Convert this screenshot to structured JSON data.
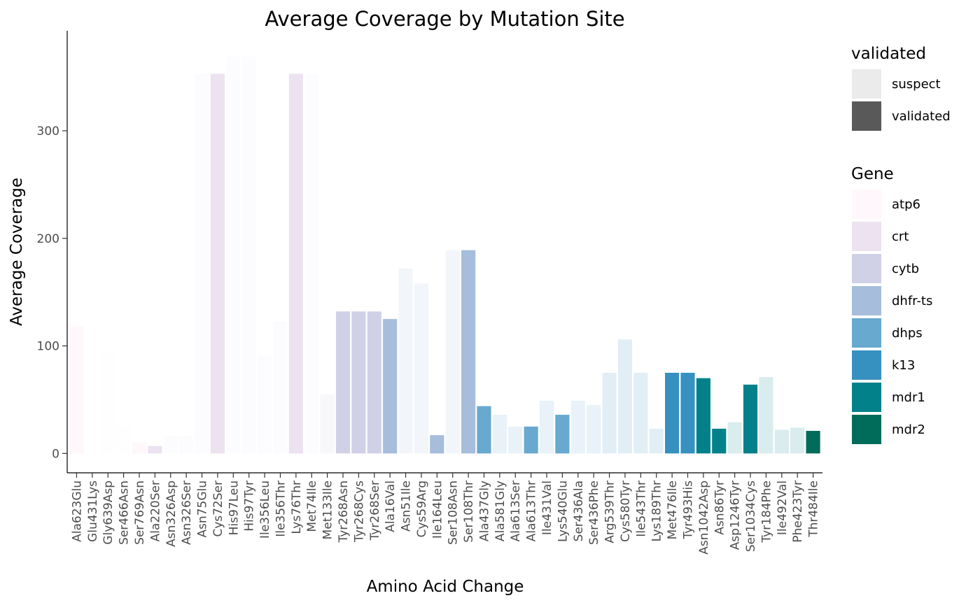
{
  "chart_data": {
    "type": "bar",
    "title": "Average Coverage by Mutation Site",
    "xlabel": "Amino Acid Change",
    "ylabel": "Average Coverage",
    "ylim": [
      -18,
      393
    ],
    "yticks": [
      0,
      100,
      200,
      300
    ],
    "grid": false,
    "legend_position": "right",
    "categories": [
      "Ala623Glu",
      "Glu431Lys",
      "Gly639Asp",
      "Ser466Asn",
      "Ser769Asn",
      "Ala220Ser",
      "Asn326Asp",
      "Asn326Ser",
      "Asn75Glu",
      "Cys72Ser",
      "His97Leu",
      "His97Tyr",
      "Ile356Leu",
      "Ile356Thr",
      "Lys76Thr",
      "Met74Ile",
      "Met133Ile",
      "Tyr268Asn",
      "Tyr268Cys",
      "Tyr268Ser",
      "Ala16Val",
      "Asn51Ile",
      "Cys59Arg",
      "Ile164Leu",
      "Ser108Asn",
      "Ser108Thr",
      "Ala437Gly",
      "Ala581Gly",
      "Ala613Ser",
      "Ala613Thr",
      "Ile431Val",
      "Lys540Glu",
      "Ser436Ala",
      "Ser436Phe",
      "Arg539Thr",
      "Cys580Tyr",
      "Ile543Thr",
      "Lys189Thr",
      "Met476Ile",
      "Tyr493His",
      "Asn1042Asp",
      "Asn86Tyr",
      "Asp1246Tyr",
      "Ser1034Cys",
      "Tyr184Phe",
      "Ile492Val",
      "Phe423Tyr",
      "Thr484Ile"
    ],
    "values": [
      118,
      0,
      95,
      25,
      10,
      7,
      16,
      16,
      353,
      353,
      369,
      369,
      91,
      123,
      353,
      353,
      55,
      132,
      132,
      132,
      125,
      172,
      158,
      17,
      189,
      189,
      44,
      36,
      25,
      25,
      49,
      36,
      49,
      45,
      75,
      106,
      75,
      23,
      75,
      75,
      70,
      23,
      29,
      64,
      71,
      22,
      24,
      21
    ],
    "gene": [
      "atp6",
      "atp6",
      "atp6",
      "atp6",
      "atp6",
      "crt",
      "crt",
      "crt",
      "crt",
      "crt",
      "crt",
      "crt",
      "crt",
      "crt",
      "crt",
      "crt",
      "cytb",
      "cytb",
      "cytb",
      "cytb",
      "dhfr-ts",
      "dhfr-ts",
      "dhfr-ts",
      "dhfr-ts",
      "dhfr-ts",
      "dhfr-ts",
      "dhps",
      "dhps",
      "dhps",
      "dhps",
      "dhps",
      "dhps",
      "dhps",
      "dhps",
      "k13",
      "k13",
      "k13",
      "k13",
      "k13",
      "k13",
      "mdr1",
      "mdr1",
      "mdr1",
      "mdr1",
      "mdr1",
      "mdr1",
      "mdr1",
      "mdr2"
    ],
    "validated": [
      true,
      false,
      false,
      false,
      true,
      true,
      false,
      false,
      false,
      true,
      false,
      false,
      false,
      false,
      true,
      false,
      false,
      true,
      true,
      true,
      true,
      false,
      false,
      true,
      false,
      true,
      true,
      false,
      false,
      true,
      false,
      true,
      false,
      false,
      false,
      false,
      false,
      false,
      true,
      true,
      true,
      true,
      false,
      true,
      false,
      false,
      false,
      true
    ]
  },
  "legend": {
    "validated": {
      "title": "validated",
      "items": [
        {
          "label": "suspect",
          "color": "#ebebeb"
        },
        {
          "label": "validated",
          "color": "#595959"
        }
      ]
    },
    "gene": {
      "title": "Gene",
      "items": [
        {
          "label": "atp6",
          "color": "#fff7fb"
        },
        {
          "label": "crt",
          "color": "#ece2f0"
        },
        {
          "label": "cytb",
          "color": "#d0d1e6"
        },
        {
          "label": "dhfr-ts",
          "color": "#a6bddb"
        },
        {
          "label": "dhps",
          "color": "#67a9cf"
        },
        {
          "label": "k13",
          "color": "#3690c0"
        },
        {
          "label": "mdr1",
          "color": "#02818a"
        },
        {
          "label": "mdr2",
          "color": "#016c59"
        }
      ]
    }
  },
  "colors": {
    "suspect_alpha": 0.15,
    "axis": "#000000",
    "tick_text": "#4d4d4d"
  }
}
